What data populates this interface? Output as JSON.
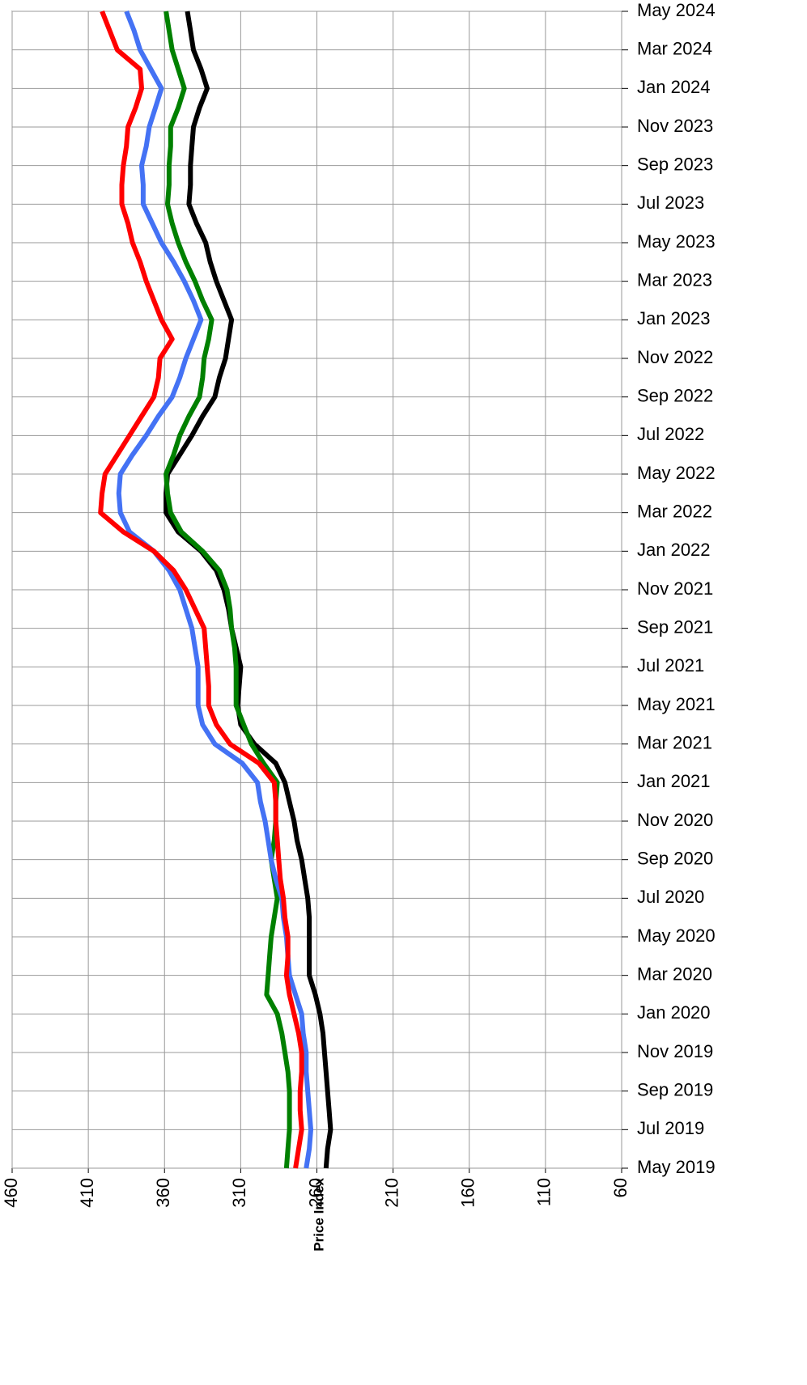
{
  "chart_data": {
    "type": "line",
    "xlabel": "Price Index",
    "categories": [
      "May 2019",
      null,
      "Jul 2019",
      null,
      "Sep 2019",
      null,
      "Nov 2019",
      null,
      "Jan 2020",
      null,
      "Mar 2020",
      null,
      "May 2020",
      null,
      "Jul 2020",
      null,
      "Sep 2020",
      null,
      "Nov 2020",
      null,
      "Jan 2021",
      null,
      "Mar 2021",
      null,
      "May 2021",
      null,
      "Jul 2021",
      null,
      "Sep 2021",
      null,
      "Nov 2021",
      null,
      "Jan 2022",
      null,
      "Mar 2022",
      null,
      "May 2022",
      null,
      "Jul 2022",
      null,
      "Sep 2022",
      null,
      "Nov 2022",
      null,
      "Jan 2023",
      null,
      "Mar 2023",
      null,
      "May 2023",
      null,
      "Jul 2023",
      null,
      "Sep 2023",
      null,
      "Nov 2023",
      null,
      "Jan 2024",
      null,
      "Mar 2024",
      null,
      "May 2024"
    ],
    "series": [
      {
        "color": "#000000",
        "values": [
          254,
          253,
          251,
          252,
          253,
          254,
          255,
          256,
          258,
          261,
          265,
          265,
          265,
          265,
          266,
          268,
          270,
          273,
          275,
          278,
          281,
          287,
          301,
          310,
          312,
          311,
          310,
          313,
          316,
          318,
          321,
          326,
          336,
          351,
          359,
          359,
          358,
          350,
          342,
          335,
          327,
          324,
          320,
          318,
          316,
          321,
          326,
          330,
          333,
          339,
          344,
          343,
          343,
          342,
          341,
          337,
          332,
          336,
          341,
          343,
          345
        ]
      },
      {
        "color": "#008000",
        "values": [
          280,
          279,
          278,
          278,
          278,
          279,
          281,
          283,
          286,
          293,
          292,
          291,
          290,
          288,
          286,
          288,
          290,
          288,
          287,
          287,
          286,
          295,
          303,
          308,
          313,
          313,
          313,
          314,
          316,
          317,
          319,
          324,
          335,
          349,
          356,
          358,
          359,
          354,
          350,
          344,
          337,
          335,
          334,
          331,
          329,
          335,
          340,
          346,
          351,
          355,
          358,
          357,
          357,
          356,
          356,
          351,
          347,
          351,
          355,
          357,
          359
        ]
      },
      {
        "color": "#4472f4",
        "values": [
          267,
          265,
          264,
          265,
          266,
          267,
          267,
          269,
          270,
          274,
          278,
          279,
          280,
          282,
          283,
          287,
          290,
          292,
          294,
          297,
          299,
          309,
          327,
          335,
          338,
          338,
          338,
          340,
          342,
          346,
          350,
          357,
          367,
          383,
          389,
          390,
          389,
          381,
          372,
          364,
          355,
          350,
          346,
          341,
          336,
          341,
          347,
          354,
          362,
          368,
          374,
          374,
          375,
          372,
          370,
          366,
          362,
          369,
          376,
          380,
          385
        ]
      },
      {
        "color": "#ff0000",
        "values": [
          274,
          272,
          270,
          271,
          271,
          270,
          270,
          272,
          275,
          278,
          280,
          279,
          279,
          281,
          282,
          284,
          285,
          286,
          287,
          287,
          288,
          298,
          317,
          326,
          331,
          331,
          332,
          333,
          334,
          340,
          346,
          354,
          367,
          387,
          402,
          401,
          399,
          391,
          383,
          375,
          367,
          364,
          363,
          355,
          362,
          367,
          372,
          376,
          381,
          384,
          388,
          388,
          387,
          385,
          384,
          379,
          375,
          376,
          391,
          396,
          401
        ]
      }
    ],
    "xlim": [
      460,
      60
    ],
    "xticks": [
      460,
      410,
      360,
      310,
      260,
      210,
      160,
      110,
      60
    ],
    "grid": true
  }
}
